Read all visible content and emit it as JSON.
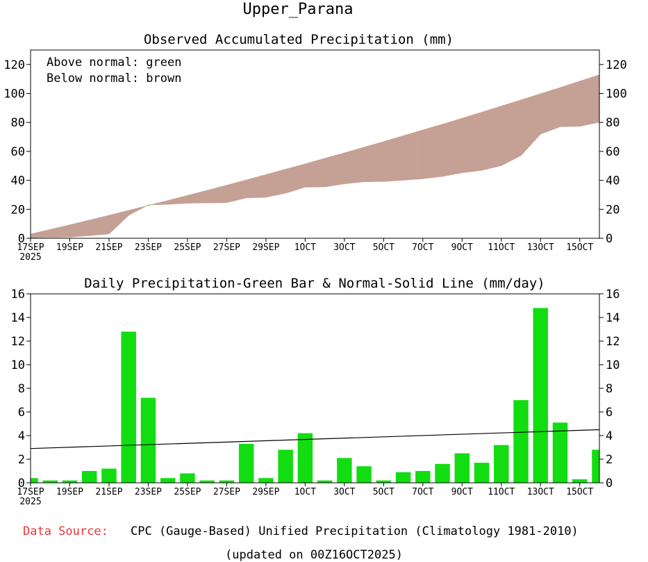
{
  "title": "Upper_Parana",
  "colors": {
    "below_fill": "#c5a094",
    "above_fill": "#00cc00",
    "bar": "#11dd11",
    "normal_line": "#000000",
    "source_label": "#ee3333"
  },
  "legend": {
    "above": "Above normal: green",
    "below": "Below normal: brown"
  },
  "chart_data": [
    {
      "type": "area",
      "title": "Observed Accumulated Precipitation (mm)",
      "xlabel": "",
      "ylabel": "",
      "ylim": [
        0,
        130
      ],
      "yticks": [
        0,
        20,
        40,
        60,
        80,
        100,
        120
      ],
      "x_tick_labels": [
        "17SEP",
        "19SEP",
        "21SEP",
        "23SEP",
        "25SEP",
        "27SEP",
        "29SEP",
        "1OCT",
        "3OCT",
        "5OCT",
        "7OCT",
        "9OCT",
        "11OCT",
        "13OCT",
        "15OCT"
      ],
      "x_year_label": "2025",
      "n_days": 30,
      "series": [
        {
          "name": "Normal (accumulated)",
          "values": [
            2.9,
            6.1,
            9.3,
            12.6,
            15.9,
            19.3,
            22.7,
            26.1,
            29.6,
            33.1,
            36.7,
            40.3,
            44.0,
            47.7,
            51.4,
            55.2,
            59.0,
            62.9,
            66.8,
            70.8,
            74.8,
            78.8,
            82.9,
            87.1,
            91.3,
            95.5,
            99.8,
            104.1,
            108.5,
            112.9
          ]
        },
        {
          "name": "Observed (accumulated)",
          "values": [
            0.4,
            0.6,
            0.8,
            1.8,
            3.0,
            15.8,
            23.0,
            23.4,
            24.2,
            24.4,
            24.6,
            27.9,
            28.3,
            31.1,
            35.3,
            35.5,
            37.6,
            39.0,
            39.2,
            40.1,
            41.1,
            42.7,
            45.2,
            46.9,
            50.1,
            57.1,
            71.9,
            77.0,
            77.3,
            80.1
          ]
        }
      ]
    },
    {
      "type": "bar",
      "title": "Daily Precipitation-Green Bar & Normal-Solid Line (mm/day)",
      "xlabel": "",
      "ylabel": "",
      "ylim": [
        0,
        16
      ],
      "yticks": [
        0,
        2,
        4,
        6,
        8,
        10,
        12,
        14,
        16
      ],
      "x_tick_labels": [
        "17SEP",
        "19SEP",
        "21SEP",
        "23SEP",
        "25SEP",
        "27SEP",
        "29SEP",
        "1OCT",
        "3OCT",
        "5OCT",
        "7OCT",
        "9OCT",
        "11OCT",
        "13OCT",
        "15OCT"
      ],
      "x_year_label": "2025",
      "n_days": 30,
      "series": [
        {
          "name": "Daily Precipitation",
          "values": [
            0.4,
            0.2,
            0.2,
            1.0,
            1.2,
            12.8,
            7.2,
            0.4,
            0.8,
            0.2,
            0.2,
            3.3,
            0.4,
            2.8,
            4.2,
            0.2,
            2.1,
            1.4,
            0.2,
            0.9,
            1.0,
            1.6,
            2.5,
            1.7,
            3.2,
            7.0,
            14.8,
            5.1,
            0.3,
            2.8
          ]
        },
        {
          "name": "Normal",
          "line_start": 2.9,
          "line_end": 4.5
        }
      ]
    }
  ],
  "footer": {
    "source_label": "Data Source:",
    "source_text": "CPC (Gauge-Based) Unified Precipitation (Climatology 1981-2010)",
    "updated": "(updated on 00Z16OCT2025)"
  }
}
